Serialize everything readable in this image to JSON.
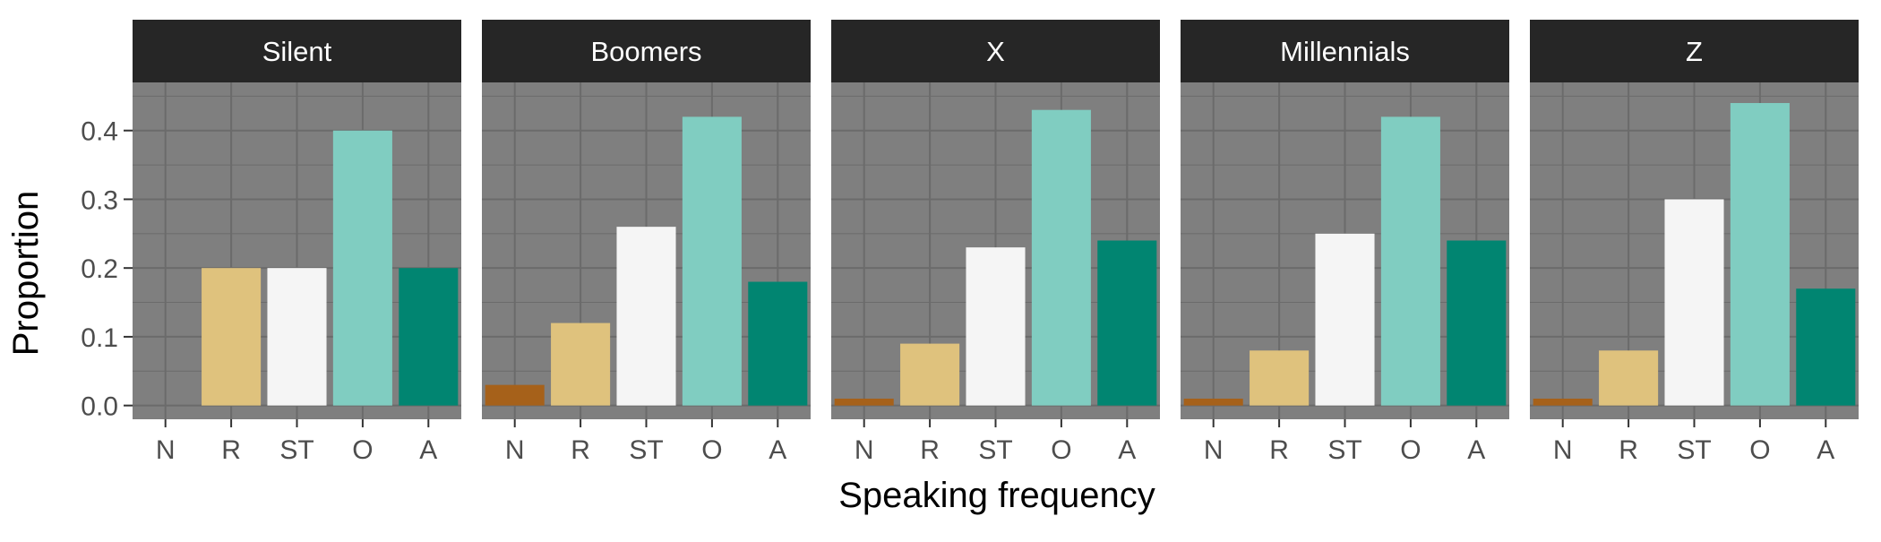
{
  "chart_data": {
    "type": "bar",
    "xlabel": "Speaking frequency",
    "ylabel": "Proportion",
    "categories": [
      "N",
      "R",
      "ST",
      "O",
      "A"
    ],
    "yticks": [
      "0.0",
      "0.1",
      "0.2",
      "0.3",
      "0.4"
    ],
    "ylim": [
      -0.02,
      0.47
    ],
    "grid": true,
    "colors": {
      "N": "#a6611a",
      "R": "#dfc27d",
      "ST": "#f5f5f5",
      "O": "#80cdc1",
      "A": "#018571",
      "panel_bg": "#7f7f7f",
      "strip_bg": "#262626",
      "strip_text": "#ffffff",
      "grid": "#6b6b6b"
    },
    "panels": [
      {
        "name": "Silent",
        "values": [
          0.0,
          0.2,
          0.2,
          0.4,
          0.2
        ]
      },
      {
        "name": "Boomers",
        "values": [
          0.03,
          0.12,
          0.26,
          0.42,
          0.18
        ]
      },
      {
        "name": "X",
        "values": [
          0.01,
          0.09,
          0.23,
          0.43,
          0.24
        ]
      },
      {
        "name": "Millennials",
        "values": [
          0.01,
          0.08,
          0.25,
          0.42,
          0.24
        ]
      },
      {
        "name": "Z",
        "values": [
          0.01,
          0.08,
          0.3,
          0.44,
          0.17
        ]
      }
    ]
  }
}
